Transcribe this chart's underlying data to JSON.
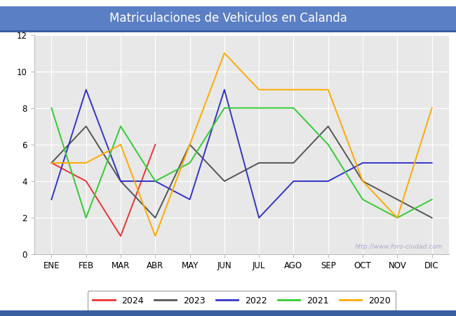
{
  "title": "Matriculaciones de Vehiculos en Calanda",
  "title_bg_color": "#5b7fc4",
  "title_text_color": "#ffffff",
  "plot_bg_color": "#e8e8e8",
  "fig_bg_color": "#ffffff",
  "border_color": "#3a5fa0",
  "months": [
    "ENE",
    "FEB",
    "MAR",
    "ABR",
    "MAY",
    "JUN",
    "JUL",
    "AGO",
    "SEP",
    "OCT",
    "NOV",
    "DIC"
  ],
  "series": {
    "2024": {
      "color": "#ee3333",
      "data": [
        5,
        4,
        1,
        6,
        null,
        null,
        null,
        null,
        null,
        null,
        null,
        null
      ]
    },
    "2023": {
      "color": "#555555",
      "data": [
        5,
        7,
        4,
        2,
        6,
        4,
        5,
        5,
        7,
        4,
        3,
        2
      ]
    },
    "2022": {
      "color": "#3333cc",
      "data": [
        3,
        9,
        4,
        4,
        3,
        9,
        2,
        4,
        4,
        5,
        5,
        5
      ]
    },
    "2021": {
      "color": "#33cc33",
      "data": [
        8,
        2,
        7,
        4,
        5,
        8,
        8,
        8,
        6,
        3,
        2,
        3
      ]
    },
    "2020": {
      "color": "#ffaa00",
      "data": [
        5,
        5,
        6,
        1,
        6,
        11,
        9,
        9,
        9,
        4,
        2,
        8
      ]
    }
  },
  "ylim": [
    0,
    12
  ],
  "yticks": [
    0,
    2,
    4,
    6,
    8,
    10,
    12
  ],
  "watermark": "http://www.foro-ciudad.com",
  "legend_labels": [
    "2024",
    "2023",
    "2022",
    "2021",
    "2020"
  ]
}
